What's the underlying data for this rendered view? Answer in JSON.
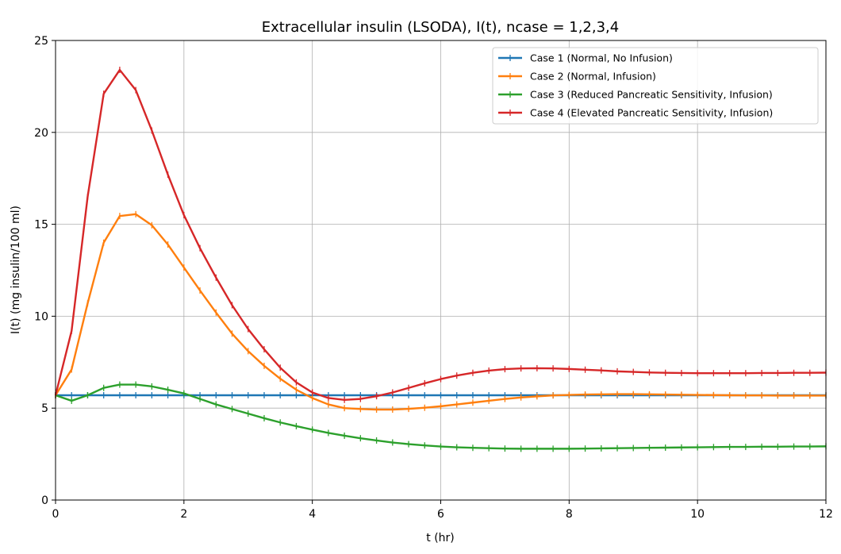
{
  "chart_data": {
    "type": "line",
    "title": "Extracellular insulin (LSODA), I(t), ncase = 1,2,3,4",
    "xlabel": "t (hr)",
    "ylabel": "I(t) (mg insulin/100 ml)",
    "xlim": [
      0,
      12
    ],
    "ylim": [
      0,
      25
    ],
    "xticks": [
      0,
      2,
      4,
      6,
      8,
      10,
      12
    ],
    "yticks": [
      0,
      5,
      10,
      15,
      20,
      25
    ],
    "grid": true,
    "legend_position": "top-right",
    "x": [
      0,
      0.25,
      0.5,
      0.75,
      1.0,
      1.25,
      1.5,
      1.75,
      2.0,
      2.25,
      2.5,
      2.75,
      3.0,
      3.25,
      3.5,
      3.75,
      4.0,
      4.25,
      4.5,
      4.75,
      5.0,
      5.25,
      5.5,
      5.75,
      6.0,
      6.25,
      6.5,
      6.75,
      7.0,
      7.25,
      7.5,
      7.75,
      8.0,
      8.25,
      8.5,
      8.75,
      9.0,
      9.25,
      9.5,
      9.75,
      10.0,
      10.25,
      10.5,
      10.75,
      11.0,
      11.25,
      11.5,
      11.75,
      12.0
    ],
    "series": [
      {
        "name": "Case 1 (Normal, No Infusion)",
        "color": "#1f77b4",
        "values": [
          5.7,
          5.7,
          5.7,
          5.7,
          5.7,
          5.7,
          5.7,
          5.7,
          5.7,
          5.7,
          5.7,
          5.7,
          5.7,
          5.7,
          5.7,
          5.7,
          5.7,
          5.7,
          5.7,
          5.7,
          5.7,
          5.7,
          5.7,
          5.7,
          5.7,
          5.7,
          5.7,
          5.7,
          5.7,
          5.7,
          5.7,
          5.7,
          5.7,
          5.7,
          5.7,
          5.7,
          5.7,
          5.7,
          5.7,
          5.7,
          5.7,
          5.7,
          5.7,
          5.7,
          5.7,
          5.7,
          5.7,
          5.7,
          5.7
        ]
      },
      {
        "name": "Case 2 (Normal, Infusion)",
        "color": "#ff7f0e",
        "values": [
          5.7,
          7.1,
          10.7,
          14.0,
          15.45,
          15.55,
          14.95,
          13.9,
          12.65,
          11.4,
          10.2,
          9.05,
          8.1,
          7.3,
          6.6,
          6.0,
          5.55,
          5.2,
          5.0,
          4.95,
          4.92,
          4.92,
          4.96,
          5.02,
          5.1,
          5.2,
          5.3,
          5.4,
          5.5,
          5.58,
          5.64,
          5.69,
          5.72,
          5.74,
          5.75,
          5.76,
          5.76,
          5.75,
          5.74,
          5.73,
          5.72,
          5.71,
          5.7,
          5.69,
          5.69,
          5.68,
          5.68,
          5.68,
          5.68
        ]
      },
      {
        "name": "Case 3 (Reduced Pancreatic Sensitivity, Infusion)",
        "color": "#2ca02c",
        "values": [
          5.7,
          5.4,
          5.7,
          6.1,
          6.28,
          6.28,
          6.18,
          6.0,
          5.8,
          5.5,
          5.2,
          4.95,
          4.7,
          4.45,
          4.22,
          4.02,
          3.83,
          3.65,
          3.5,
          3.36,
          3.24,
          3.13,
          3.04,
          2.97,
          2.91,
          2.87,
          2.84,
          2.82,
          2.8,
          2.79,
          2.79,
          2.79,
          2.79,
          2.8,
          2.81,
          2.82,
          2.83,
          2.84,
          2.85,
          2.86,
          2.87,
          2.88,
          2.89,
          2.89,
          2.9,
          2.9,
          2.91,
          2.91,
          2.92
        ]
      },
      {
        "name": "Case 4 (Elevated Pancreatic Sensitivity, Infusion)",
        "color": "#d62728",
        "values": [
          5.7,
          9.2,
          16.5,
          22.1,
          23.4,
          22.3,
          20.1,
          17.7,
          15.5,
          13.7,
          12.1,
          10.6,
          9.3,
          8.2,
          7.2,
          6.4,
          5.85,
          5.55,
          5.45,
          5.5,
          5.65,
          5.85,
          6.1,
          6.35,
          6.58,
          6.77,
          6.92,
          7.04,
          7.12,
          7.16,
          7.17,
          7.16,
          7.13,
          7.09,
          7.05,
          7.0,
          6.97,
          6.94,
          6.92,
          6.91,
          6.9,
          6.9,
          6.9,
          6.9,
          6.91,
          6.91,
          6.92,
          6.92,
          6.93
        ]
      }
    ]
  }
}
